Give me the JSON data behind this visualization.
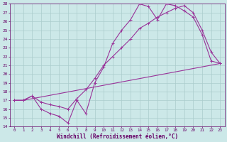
{
  "xlabel": "Windchill (Refroidissement éolien,°C)",
  "bg_color": "#cce8e8",
  "grid_color": "#aacccc",
  "line_color": "#993399",
  "xlim": [
    -0.5,
    23.5
  ],
  "ylim": [
    14,
    28
  ],
  "xticks": [
    0,
    1,
    2,
    3,
    4,
    5,
    6,
    7,
    8,
    9,
    10,
    11,
    12,
    13,
    14,
    15,
    16,
    17,
    18,
    19,
    20,
    21,
    22,
    23
  ],
  "yticks": [
    14,
    15,
    16,
    17,
    18,
    19,
    20,
    21,
    22,
    23,
    24,
    25,
    26,
    27,
    28
  ],
  "line1_x": [
    0,
    1,
    2,
    3,
    4,
    5,
    6,
    7,
    8,
    9,
    10,
    11,
    12,
    13,
    14,
    15,
    16,
    17,
    18,
    19,
    20,
    21,
    22,
    23
  ],
  "line1_y": [
    17.0,
    17.0,
    17.5,
    16.0,
    15.5,
    15.2,
    14.4,
    17.0,
    15.5,
    19.0,
    20.8,
    23.5,
    25.0,
    26.2,
    28.0,
    27.7,
    26.2,
    28.0,
    27.8,
    27.2,
    26.5,
    24.5,
    21.5,
    21.2
  ],
  "line2_x": [
    0,
    1,
    2,
    3,
    4,
    5,
    6,
    7,
    8,
    9,
    10,
    11,
    12,
    13,
    14,
    15,
    16,
    17,
    18,
    19,
    20,
    21,
    22,
    23
  ],
  "line2_y": [
    17.0,
    17.0,
    17.5,
    16.8,
    16.5,
    16.3,
    16.0,
    17.2,
    18.2,
    19.5,
    21.0,
    22.0,
    23.0,
    24.0,
    25.2,
    25.8,
    26.5,
    27.0,
    27.5,
    27.8,
    27.0,
    25.0,
    22.5,
    21.2
  ],
  "line3_x": [
    0,
    1,
    23
  ],
  "line3_y": [
    17.0,
    17.0,
    21.2
  ]
}
